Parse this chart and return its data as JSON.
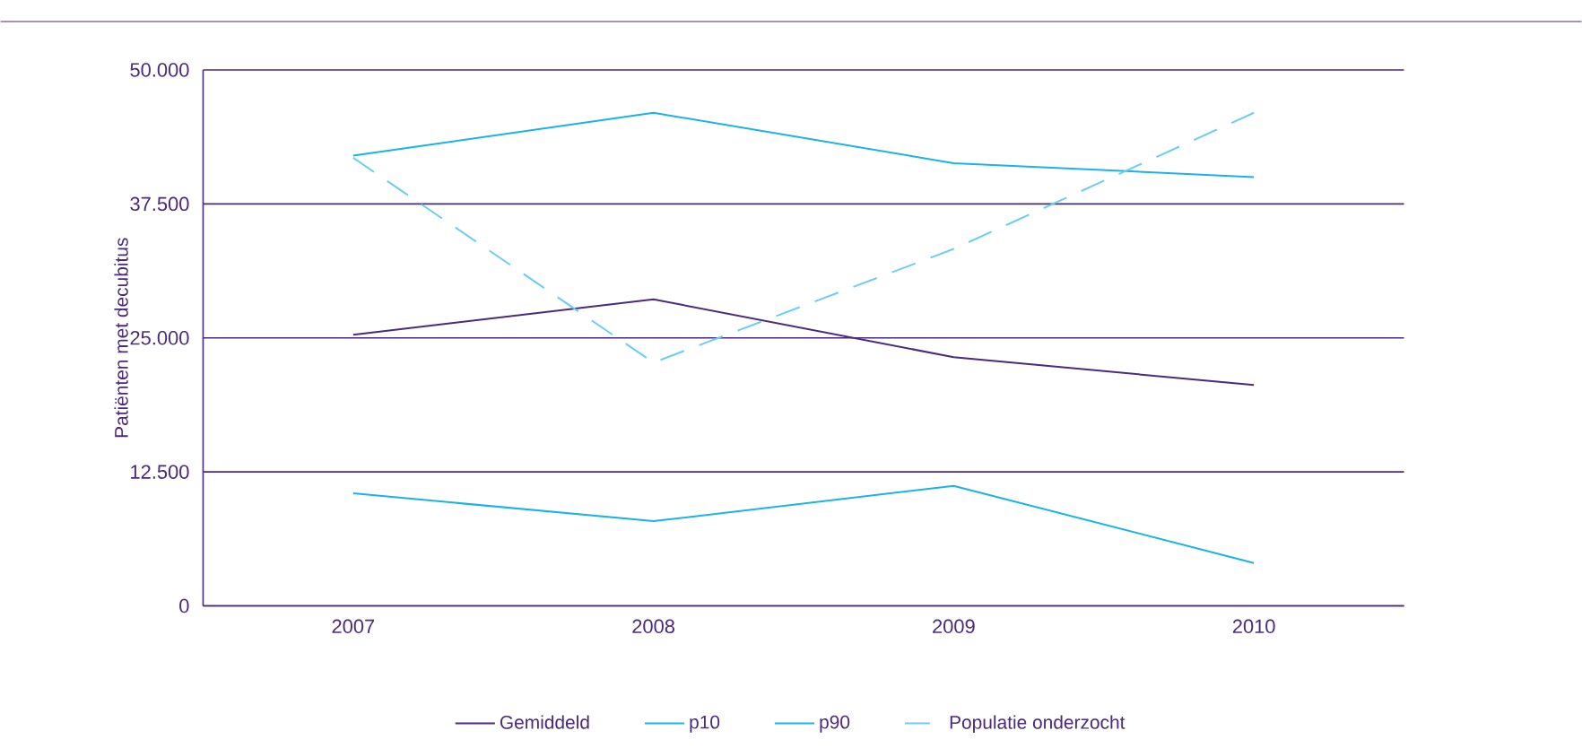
{
  "chart_data": {
    "type": "line",
    "ylabel": "Patiënten met decubitus",
    "categories": [
      "2007",
      "2008",
      "2009",
      "2010"
    ],
    "series": [
      {
        "name": "Gemiddeld",
        "color": "#4b2a7b",
        "values": [
          25300,
          28600,
          23200,
          20600
        ]
      },
      {
        "name": "p10",
        "color": "#1ab2e8",
        "values": [
          10500,
          7900,
          11200,
          4000
        ]
      },
      {
        "name": "p90",
        "color": "#1ab2e8",
        "values": [
          42000,
          46000,
          41300,
          40000
        ]
      },
      {
        "name": "Populatie onderzocht",
        "color": "#6ccdf2",
        "line_style": "dashed",
        "values": [
          41800,
          22700,
          33300,
          46000
        ]
      }
    ],
    "ylim": [
      0,
      50000
    ],
    "yticks": [
      {
        "value": 0,
        "label": "0"
      },
      {
        "value": 12500,
        "label": "12.500"
      },
      {
        "value": 25000,
        "label": "25.000"
      },
      {
        "value": 37500,
        "label": "37.500"
      },
      {
        "value": 50000,
        "label": "50.000"
      }
    ],
    "grid": "y",
    "legend": "bottom"
  }
}
